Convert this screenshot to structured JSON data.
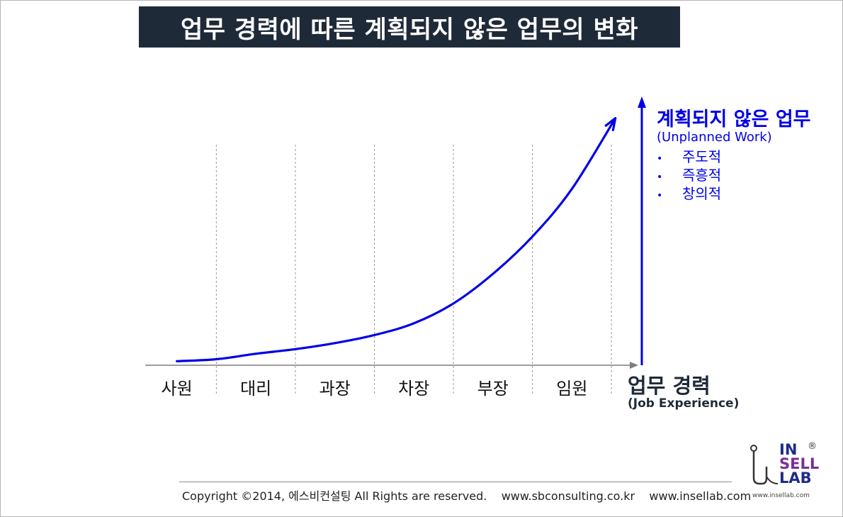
{
  "title": "업무 경력에 따른 계획되지 않은 업무의 변화",
  "chart_data": {
    "type": "line",
    "title": "업무 경력에 따른 계획되지 않은 업무의 변화",
    "categories": [
      "사원",
      "대리",
      "과장",
      "차장",
      "부장",
      "임원"
    ],
    "series": [
      {
        "name": "계획되지 않은 업무",
        "color": "#0000e6",
        "x": [
          0.0,
          0.5,
          1.0,
          1.5,
          2.0,
          2.5,
          3.0,
          3.5,
          4.0,
          4.5,
          5.0,
          5.55
        ],
        "y": [
          1.4,
          2.1,
          4.0,
          5.6,
          7.7,
          10.5,
          14.6,
          21.5,
          31.8,
          44.8,
          61.4,
          86.0
        ]
      }
    ],
    "xlabel": "업무 경력",
    "xlabel_en": "(Job Experience)",
    "ylabel": "계획되지 않은 업무",
    "ylabel_en": "(Unplanned Work)",
    "ylabel_items": [
      "주도적",
      "즉흥적",
      "창의적"
    ],
    "xlim": [
      -0.4,
      5.75
    ],
    "ylim": [
      0,
      100
    ],
    "grid": "vertical dashed"
  },
  "footer": {
    "copyright": "Copyright ©2014, 에스비컨설팅 All Rights are reserved.    www.sbconsulting.co.kr    www.insellab.com"
  },
  "logo": {
    "line1": "IN",
    "line2": "SELL",
    "line3": "LAB",
    "registered": "®",
    "url": "www.insellab.com"
  },
  "colors": {
    "curve": "#0000e6",
    "axis": "#7f7f7f",
    "title_bg": "#1f2a38"
  }
}
